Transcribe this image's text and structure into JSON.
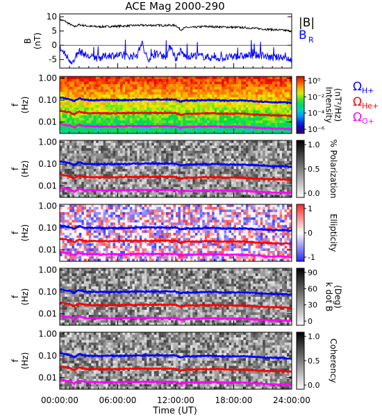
{
  "chart_data": {
    "title": "ACE Mag 2000-290",
    "type": "line",
    "x_label": "Time (UT)",
    "x_ticks": [
      "00:00:00",
      "06:00:00",
      "12:00:00",
      "18:00:00",
      "24:00:00"
    ],
    "x_range_hours": [
      0,
      24
    ],
    "field_panel": {
      "ylabel": "B\n(nT)",
      "yticks": [
        "10",
        "5",
        "0",
        "-5"
      ],
      "ylim": [
        -8,
        11
      ],
      "legend": [
        "|B|",
        "B_R"
      ],
      "series": [
        {
          "name": "|B|",
          "color": "#000000",
          "t": [
            0,
            0.5,
            1,
            1.5,
            2,
            3,
            4,
            5,
            6,
            7,
            8,
            9,
            10,
            11,
            12,
            12.5,
            13,
            14,
            15,
            16,
            17,
            18,
            19,
            20,
            21,
            22,
            23,
            24
          ],
          "v": [
            9,
            8.5,
            7.5,
            6.5,
            7.2,
            6.7,
            6.5,
            6.6,
            6.7,
            6.8,
            7,
            7,
            7,
            7,
            7,
            5.4,
            6.2,
            6.3,
            6.6,
            6.5,
            6.4,
            6.3,
            6.2,
            6,
            5.7,
            5.5,
            5.3,
            5
          ]
        },
        {
          "name": "B_R",
          "color": "#0000ff",
          "t": [
            0,
            0.5,
            1,
            1.5,
            2,
            2.5,
            3,
            4,
            5,
            6,
            7,
            8,
            8.5,
            9,
            10,
            11,
            11.5,
            12,
            12.5,
            13,
            14,
            15,
            16,
            17,
            18,
            19,
            20,
            21,
            22,
            23,
            24
          ],
          "v": [
            -1,
            -3,
            -5,
            -6,
            -2,
            -3,
            -4,
            -4.5,
            -3.5,
            -3.5,
            -4,
            -3.5,
            1,
            -5,
            -3,
            -4,
            0,
            -5,
            -2,
            -4,
            -3.5,
            -4,
            -4.5,
            -4.5,
            -4,
            -3.8,
            -3.5,
            -3.5,
            -4.5,
            -4,
            -5
          ]
        }
      ]
    },
    "spectral_panels": [
      {
        "ylabel": "f\n(Hz)",
        "colorbar_label": "Intensity\n(nT²/Hz)",
        "colorbar_ticks": [
          "10⁰",
          "10⁻²",
          "10⁻⁴",
          "10⁻⁶"
        ],
        "colormap": "rainbow"
      },
      {
        "ylabel": "f\n(Hz)",
        "colorbar_label": "% Polarization",
        "colorbar_ticks": [
          "1.0",
          "0.5",
          "0.0"
        ],
        "colormap": "gray"
      },
      {
        "ylabel": "f\n(Hz)",
        "colorbar_label": "Ellipticity",
        "colorbar_ticks": [
          "1",
          "0",
          "-1"
        ],
        "colormap": "blue-white-red"
      },
      {
        "ylabel": "f\n(Hz)",
        "colorbar_label": "k dot B\n(Deg)",
        "colorbar_ticks": [
          "90",
          "60",
          "30",
          "0"
        ],
        "colormap": "gray"
      },
      {
        "ylabel": "f\n(Hz)",
        "colorbar_label": "Coherency",
        "colorbar_ticks": [
          "1.0",
          "0.5",
          "0.0"
        ],
        "colormap": "gray"
      }
    ],
    "frequency_axis": {
      "scale": "log",
      "ylim": [
        0.003,
        1.2
      ],
      "ticks": [
        "1.00",
        "0.10",
        "0.01"
      ]
    },
    "gyrofrequency_lines": [
      {
        "name": "ΩH+",
        "color": "#0000ff",
        "t": [
          0,
          0.5,
          1,
          1.5,
          2,
          2.5,
          3,
          4,
          5,
          6,
          7,
          8,
          9,
          10,
          11,
          12,
          12.5,
          13,
          14,
          15,
          16,
          17,
          18,
          19,
          20,
          21,
          22,
          23,
          24
        ],
        "f": [
          0.13,
          0.12,
          0.11,
          0.09,
          0.12,
          0.105,
          0.1,
          0.1,
          0.1,
          0.1,
          0.1,
          0.105,
          0.105,
          0.105,
          0.105,
          0.105,
          0.085,
          0.095,
          0.095,
          0.1,
          0.1,
          0.095,
          0.095,
          0.095,
          0.09,
          0.085,
          0.08,
          0.08,
          0.075
        ]
      },
      {
        "name": "ΩHe+",
        "color": "#ff0000",
        "t": [
          0,
          0.5,
          1,
          1.5,
          2,
          2.5,
          3,
          4,
          5,
          6,
          7,
          8,
          9,
          10,
          11,
          12,
          12.5,
          13,
          14,
          15,
          16,
          17,
          18,
          19,
          20,
          21,
          22,
          23,
          24
        ],
        "f": [
          0.033,
          0.03,
          0.028,
          0.022,
          0.03,
          0.026,
          0.025,
          0.025,
          0.025,
          0.025,
          0.026,
          0.026,
          0.026,
          0.026,
          0.026,
          0.026,
          0.021,
          0.024,
          0.024,
          0.025,
          0.025,
          0.024,
          0.024,
          0.024,
          0.022,
          0.021,
          0.02,
          0.02,
          0.019
        ]
      },
      {
        "name": "ΩO+",
        "color": "#ff00ff",
        "t": [
          0,
          0.5,
          1,
          1.5,
          2,
          2.5,
          3,
          4,
          5,
          6,
          7,
          8,
          9,
          10,
          11,
          12,
          12.5,
          13,
          14,
          15,
          16,
          17,
          18,
          19,
          20,
          21,
          22,
          23,
          24
        ],
        "f": [
          0.0083,
          0.0075,
          0.007,
          0.0055,
          0.0075,
          0.0065,
          0.0063,
          0.0063,
          0.0063,
          0.0063,
          0.0065,
          0.0065,
          0.0065,
          0.0065,
          0.0065,
          0.0065,
          0.0053,
          0.006,
          0.006,
          0.0063,
          0.0063,
          0.006,
          0.006,
          0.006,
          0.0056,
          0.0053,
          0.005,
          0.005,
          0.0047
        ]
      }
    ],
    "grid": false
  }
}
